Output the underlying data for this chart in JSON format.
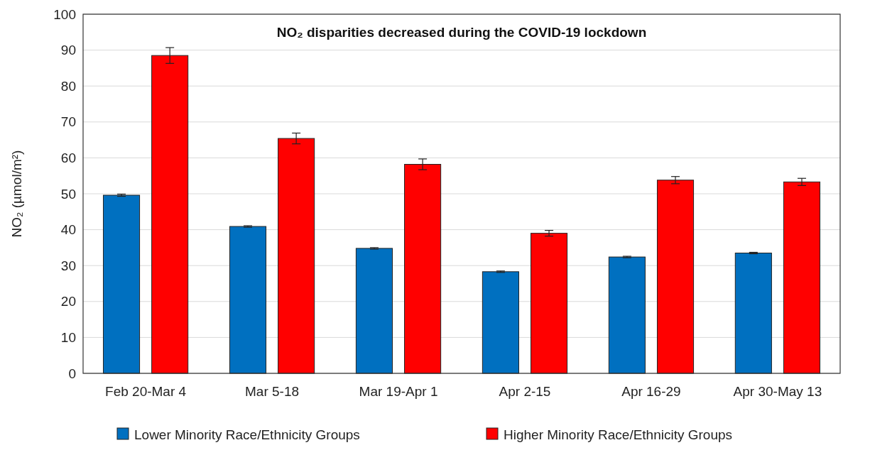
{
  "chart_data": {
    "type": "bar",
    "title": "NO₂ disparities decreased during the COVID-19 lockdown",
    "ylabel": "NO₂ (µmol/m²)",
    "categories": [
      "Feb 20-Mar 4",
      "Mar 5-18",
      "Mar 19-Apr 1",
      "Apr 2-15",
      "Apr 16-29",
      "Apr 30-May 13"
    ],
    "series": [
      {
        "name": "Lower Minority Race/Ethnicity Groups",
        "color": "#0070c0",
        "values": [
          49.6,
          40.9,
          34.8,
          28.3,
          32.4,
          33.5
        ],
        "errors": [
          0.3,
          0.2,
          0.2,
          0.2,
          0.2,
          0.2
        ]
      },
      {
        "name": "Higher Minority Race/Ethnicity Groups",
        "color": "#ff0000",
        "values": [
          88.5,
          65.4,
          58.2,
          39.0,
          53.8,
          53.3
        ],
        "errors": [
          2.2,
          1.5,
          1.5,
          0.8,
          1.0,
          1.0
        ]
      }
    ],
    "ylim": [
      0,
      100
    ],
    "yticks": [
      0,
      10,
      20,
      30,
      40,
      50,
      60,
      70,
      80,
      90,
      100
    ],
    "grid": "y",
    "legend": "bottom"
  }
}
